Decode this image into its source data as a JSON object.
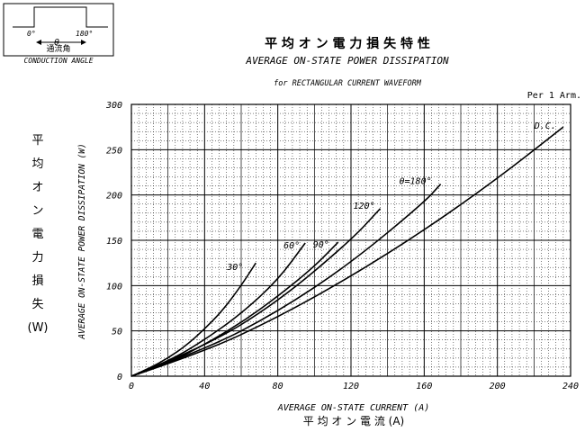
{
  "inset": {
    "deg0": "0°",
    "deg180": "180°",
    "theta": "θ",
    "jp_label": "通流角",
    "en_label": "CONDUCTION ANGLE"
  },
  "note": "Per 1 Arm.",
  "chart_data": {
    "type": "line",
    "title_jp": "平 均 オ ン 電 力 損 失 特 性",
    "title": "AVERAGE ON-STATE POWER DISSIPATION",
    "subtitle": "for RECTANGULAR CURRENT WAVEFORM",
    "xlabel": "AVERAGE ON-STATE CURRENT (A)",
    "xlabel_jp": "平 均 オ ン 電 流 (A)",
    "ylabel": "AVERAGE ON-STATE POWER DISSIPATION (W)",
    "ylabel_jp": [
      "平",
      "均",
      "オ",
      "ン",
      "電",
      "力",
      "損",
      "失",
      "(W)"
    ],
    "xlim": [
      0,
      240
    ],
    "ylim": [
      0,
      300
    ],
    "xticks": [
      0,
      40,
      80,
      120,
      160,
      200,
      240
    ],
    "yticks": [
      0,
      50,
      100,
      150,
      200,
      250,
      300
    ],
    "grid": true,
    "series": [
      {
        "name": "30°",
        "x": [
          0,
          10,
          20,
          30,
          40,
          50,
          60,
          68
        ],
        "y": [
          0,
          9,
          20,
          34,
          52,
          73,
          100,
          125
        ]
      },
      {
        "name": "60°",
        "x": [
          0,
          20,
          40,
          60,
          80,
          95
        ],
        "y": [
          0,
          16,
          40,
          69,
          106,
          147
        ]
      },
      {
        "name": "90°",
        "x": [
          0,
          20,
          40,
          60,
          80,
          100,
          113
        ],
        "y": [
          0,
          14,
          35,
          59,
          88,
          121,
          148
        ]
      },
      {
        "name": "120°",
        "x": [
          0,
          40,
          80,
          120,
          136
        ],
        "y": [
          0,
          32,
          82,
          150,
          185
        ]
      },
      {
        "name": "θ=180°",
        "x": [
          0,
          40,
          80,
          120,
          160,
          169
        ],
        "y": [
          0,
          29,
          71,
          125,
          192,
          212
        ]
      },
      {
        "name": "D.C.",
        "x": [
          0,
          40,
          80,
          120,
          160,
          200,
          236
        ],
        "y": [
          0,
          27,
          65,
          110,
          161,
          218,
          275
        ]
      }
    ]
  }
}
